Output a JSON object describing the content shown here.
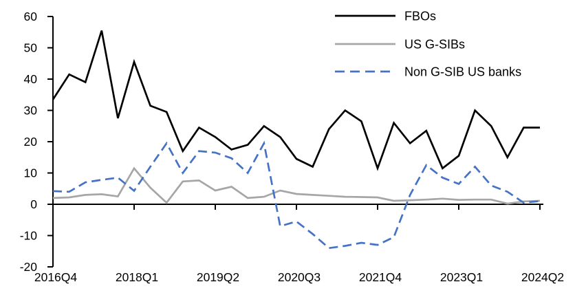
{
  "chart_data": {
    "type": "line",
    "title": "",
    "xlabel": "",
    "ylabel": "",
    "ylim": [
      -20,
      60
    ],
    "ytick_step": 10,
    "ytick_labels": [
      "60",
      "50",
      "40",
      "30",
      "20",
      "10",
      "0",
      "-10",
      "-20"
    ],
    "x_tick_labels": [
      "2016Q4",
      "2018Q1",
      "2019Q2",
      "2020Q3",
      "2021Q4",
      "2023Q1",
      "2024Q2"
    ],
    "x_tick_indices": [
      0,
      5,
      10,
      15,
      20,
      25,
      30
    ],
    "grid": false,
    "legend_position": "top-right",
    "categories": [
      "2016Q4",
      "2017Q1",
      "2017Q2",
      "2017Q3",
      "2017Q4",
      "2018Q1",
      "2018Q2",
      "2018Q3",
      "2018Q4",
      "2019Q1",
      "2019Q2",
      "2019Q3",
      "2019Q4",
      "2020Q1",
      "2020Q2",
      "2020Q3",
      "2020Q4",
      "2021Q1",
      "2021Q2",
      "2021Q3",
      "2021Q4",
      "2022Q1",
      "2022Q2",
      "2022Q3",
      "2022Q4",
      "2023Q1",
      "2023Q2",
      "2023Q3",
      "2023Q4",
      "2024Q1",
      "2024Q2"
    ],
    "series": [
      {
        "name": "FBOs",
        "color": "#000000",
        "dash": "",
        "values": [
          33.5,
          41.5,
          39,
          55.5,
          27.5,
          45.5,
          31.5,
          29.5,
          17,
          24.5,
          21.5,
          17.5,
          19,
          25,
          21.5,
          14.5,
          12,
          24,
          30,
          26.5,
          11.5,
          26,
          19.5,
          23.5,
          11.5,
          15.5,
          30,
          25,
          15,
          24.5,
          24.5
        ]
      },
      {
        "name": "US G-SIBs",
        "color": "#A6A6A6",
        "dash": "",
        "values": [
          2,
          2.2,
          3,
          3.2,
          2.5,
          11.5,
          5.3,
          0.5,
          7.3,
          7.6,
          4.4,
          5.6,
          2,
          2.4,
          4.4,
          3.3,
          3,
          2.7,
          2.4,
          2.3,
          2.2,
          1.1,
          1.3,
          1.5,
          1.8,
          1.4,
          1.5,
          1.5,
          0.2,
          0.9,
          1.1
        ]
      },
      {
        "name": "Non G-SIB US banks",
        "color": "#4472C4",
        "dash": "13 7",
        "values": [
          4.2,
          4,
          7,
          7.8,
          8.5,
          4.3,
          12,
          19.5,
          10,
          17,
          16.5,
          14.7,
          10,
          19.5,
          -7,
          -5.5,
          -9.5,
          -14,
          -13.3,
          -12.3,
          -13,
          -10.5,
          3,
          12.5,
          8.5,
          6.5,
          12,
          6,
          4,
          0.5,
          1
        ]
      }
    ]
  }
}
